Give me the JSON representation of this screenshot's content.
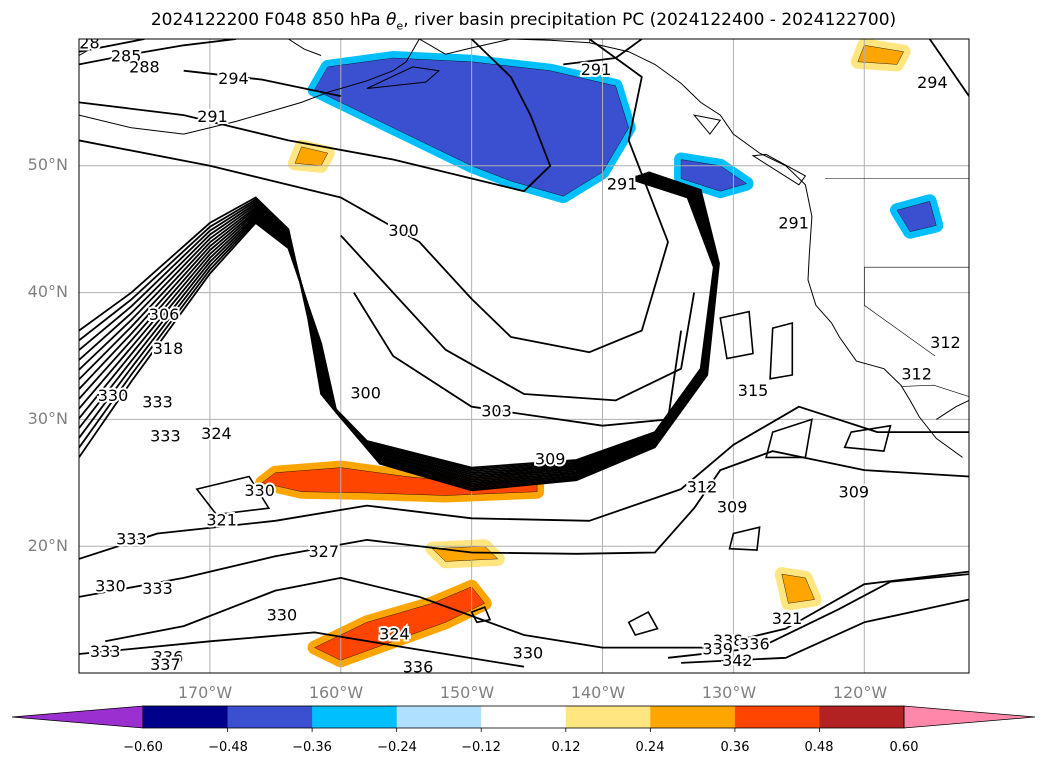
{
  "title": {
    "prefix": "2024122200 F048 850 hPa ",
    "symbol": "θ",
    "subscript": "e",
    "suffix": ", river basin precipitation PC (2024122400 - 2024122700)"
  },
  "map": {
    "lon_range": [
      -180,
      -112
    ],
    "lat_range": [
      10,
      60
    ],
    "lat_labels": [
      "50°N",
      "40°N",
      "30°N",
      "20°N"
    ],
    "lon_labels": [
      "170°W",
      "160°W",
      "150°W",
      "140°W",
      "130°W",
      "120°W"
    ],
    "gridlines": true
  },
  "contour_labels": [
    {
      "text": "285",
      "lon": -176.4,
      "lat": 58.6
    },
    {
      "text": "288",
      "lon": -175.0,
      "lat": 57.7
    },
    {
      "text": "28",
      "lon": -179.2,
      "lat": 59.6
    },
    {
      "text": "294",
      "lon": -168.2,
      "lat": 56.8
    },
    {
      "text": "291",
      "lon": -140.5,
      "lat": 57.5
    },
    {
      "text": "294",
      "lon": -114.8,
      "lat": 56.5
    },
    {
      "text": "291",
      "lon": -169.8,
      "lat": 53.8
    },
    {
      "text": "291",
      "lon": -138.5,
      "lat": 48.5
    },
    {
      "text": "291",
      "lon": -125.4,
      "lat": 45.4
    },
    {
      "text": "300",
      "lon": -155.2,
      "lat": 44.8
    },
    {
      "text": "306",
      "lon": -173.5,
      "lat": 38.2
    },
    {
      "text": "318",
      "lon": -173.2,
      "lat": 35.5
    },
    {
      "text": "330",
      "lon": -177.4,
      "lat": 31.8
    },
    {
      "text": "333",
      "lon": -174.0,
      "lat": 31.3
    },
    {
      "text": "300",
      "lon": -158.1,
      "lat": 32.0
    },
    {
      "text": "303",
      "lon": -148.1,
      "lat": 30.6
    },
    {
      "text": "315",
      "lon": -128.5,
      "lat": 32.2
    },
    {
      "text": "312",
      "lon": -116.0,
      "lat": 33.5
    },
    {
      "text": "312",
      "lon": -113.8,
      "lat": 36.0
    },
    {
      "text": "333",
      "lon": -173.4,
      "lat": 28.6
    },
    {
      "text": "324",
      "lon": -169.5,
      "lat": 28.8
    },
    {
      "text": "309",
      "lon": -144.0,
      "lat": 26.8
    },
    {
      "text": "312",
      "lon": -132.4,
      "lat": 24.6
    },
    {
      "text": "309",
      "lon": -130.1,
      "lat": 23.0
    },
    {
      "text": "309",
      "lon": -120.8,
      "lat": 24.2
    },
    {
      "text": "330",
      "lon": -166.2,
      "lat": 24.3
    },
    {
      "text": "321",
      "lon": -169.1,
      "lat": 22.0
    },
    {
      "text": "333",
      "lon": -176.0,
      "lat": 20.5
    },
    {
      "text": "327",
      "lon": -161.3,
      "lat": 19.5
    },
    {
      "text": "330",
      "lon": -177.6,
      "lat": 16.8
    },
    {
      "text": "333",
      "lon": -174.0,
      "lat": 16.6
    },
    {
      "text": "330",
      "lon": -164.5,
      "lat": 14.5
    },
    {
      "text": "324",
      "lon": -155.9,
      "lat": 13.0
    },
    {
      "text": "333",
      "lon": -178.0,
      "lat": 11.6
    },
    {
      "text": "336",
      "lon": -173.2,
      "lat": 11.2
    },
    {
      "text": "337",
      "lon": -173.4,
      "lat": 10.6
    },
    {
      "text": "336",
      "lon": -154.1,
      "lat": 10.4
    },
    {
      "text": "330",
      "lon": -145.7,
      "lat": 11.5
    },
    {
      "text": "321",
      "lon": -125.9,
      "lat": 14.2
    },
    {
      "text": "338",
      "lon": -130.4,
      "lat": 12.5
    },
    {
      "text": "336",
      "lon": -128.4,
      "lat": 12.2
    },
    {
      "text": "339",
      "lon": -131.2,
      "lat": 11.8
    },
    {
      "text": "342",
      "lon": -129.7,
      "lat": 10.9
    }
  ],
  "colorbar": {
    "colors": [
      "#9b30d0",
      "#00008b",
      "#3a50d0",
      "#00bfff",
      "#b0e0ff",
      "#ffffff",
      "#ffe680",
      "#ffa500",
      "#ff4500",
      "#b22222",
      "#ff88aa"
    ],
    "ticks": [
      "−0.60",
      "−0.48",
      "−0.36",
      "−0.24",
      "−0.12",
      "0.12",
      "0.24",
      "0.36",
      "0.48",
      "0.60"
    ]
  },
  "shading": [
    {
      "name": "precip-blue-alaska",
      "level": "#3a50d0",
      "pts": [
        [
          -161,
          57.8
        ],
        [
          -156,
          58.5
        ],
        [
          -150,
          58.2
        ],
        [
          -144,
          57.5
        ],
        [
          -139,
          56.3
        ],
        [
          -138,
          53
        ],
        [
          -140,
          49.5
        ],
        [
          -143,
          47.6
        ],
        [
          -147,
          48.8
        ],
        [
          -150,
          50
        ],
        [
          -155,
          52.5
        ],
        [
          -158,
          54
        ],
        [
          -162,
          56
        ]
      ],
      "halo": "#00bfff"
    },
    {
      "name": "precip-blue-bc",
      "level": "#3a50d0",
      "pts": [
        [
          -134,
          50.5
        ],
        [
          -131,
          50
        ],
        [
          -129,
          48.6
        ],
        [
          -131,
          48
        ],
        [
          -134,
          49
        ]
      ],
      "halo": "#00bfff"
    },
    {
      "name": "precip-blue-nw",
      "level": "#3a50d0",
      "pts": [
        [
          -117.5,
          46.5
        ],
        [
          -115,
          47.2
        ],
        [
          -114.5,
          45.3
        ],
        [
          -116.5,
          44.8
        ]
      ],
      "halo": "#00bfff"
    },
    {
      "name": "precip-orange-band",
      "level": "#ff4500",
      "pts": [
        [
          -165,
          25.8
        ],
        [
          -160,
          26.2
        ],
        [
          -155,
          25.5
        ],
        [
          -150,
          25
        ],
        [
          -145,
          25
        ],
        [
          -145,
          24.3
        ],
        [
          -152,
          24
        ],
        [
          -158,
          24.2
        ],
        [
          -163,
          24.3
        ],
        [
          -166,
          25
        ]
      ],
      "halo": "#ffa500"
    },
    {
      "name": "precip-orange-south",
      "level": "#ff4500",
      "pts": [
        [
          -162,
          12
        ],
        [
          -158,
          14
        ],
        [
          -153,
          15.5
        ],
        [
          -150,
          16.8
        ],
        [
          -149,
          15.5
        ],
        [
          -152,
          14
        ],
        [
          -156,
          12.5
        ],
        [
          -160,
          11
        ]
      ],
      "halo": "#ffa500"
    },
    {
      "name": "precip-orange-sw",
      "level": "#ffa500",
      "pts": [
        [
          -126.3,
          17.8
        ],
        [
          -124.5,
          17.5
        ],
        [
          -123.8,
          15.8
        ],
        [
          -125.8,
          15.5
        ]
      ],
      "halo": "#ffe680"
    },
    {
      "name": "precip-orange-mid",
      "level": "#ffa500",
      "pts": [
        [
          -153,
          19.8
        ],
        [
          -149,
          20
        ],
        [
          -148,
          19
        ],
        [
          -152,
          18.8
        ]
      ],
      "halo": "#ffe680"
    },
    {
      "name": "precip-orange-top",
      "level": "#ffa500",
      "pts": [
        [
          -120,
          59.5
        ],
        [
          -117,
          59
        ],
        [
          -117.5,
          58
        ],
        [
          -120.5,
          58.2
        ]
      ],
      "halo": "#ffe680"
    },
    {
      "name": "precip-orange-w",
      "level": "#ffa500",
      "pts": [
        [
          -163,
          51.5
        ],
        [
          -161,
          51
        ],
        [
          -161.5,
          50
        ],
        [
          -163.5,
          50.2
        ]
      ],
      "halo": "#ffe680"
    }
  ]
}
